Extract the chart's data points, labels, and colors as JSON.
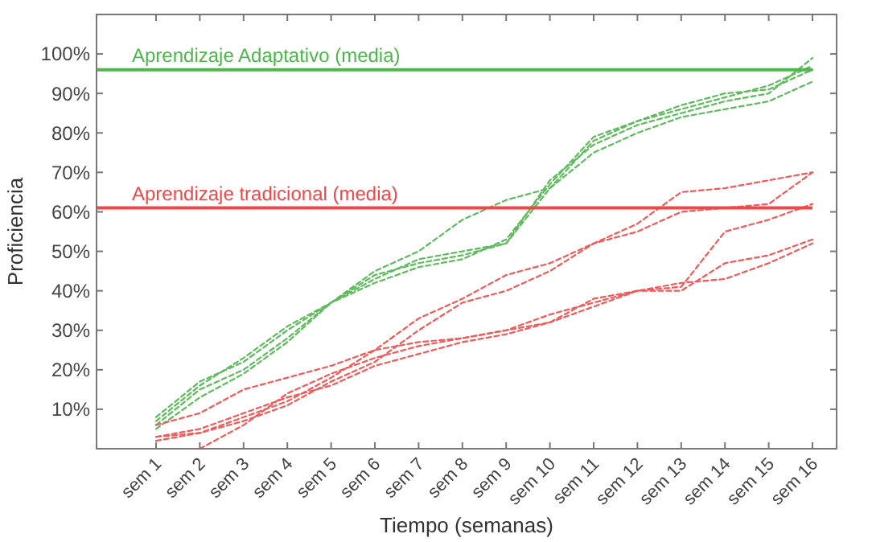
{
  "chart_data": {
    "type": "line",
    "xlabel": "Tiempo (semanas)",
    "ylabel": "Proficiencia",
    "categories": [
      "sem 1",
      "sem 2",
      "sem 3",
      "sem 4",
      "sem 5",
      "sem 6",
      "sem 7",
      "sem 8",
      "sem 9",
      "sem 10",
      "sem 11",
      "sem 12",
      "sem 13",
      "sem 14",
      "sem 15",
      "sem 16"
    ],
    "ylim": [
      0,
      110
    ],
    "yticks": [
      {
        "value": 10,
        "label": "10%"
      },
      {
        "value": 20,
        "label": "20%"
      },
      {
        "value": 30,
        "label": "30%"
      },
      {
        "value": 40,
        "label": "40%"
      },
      {
        "value": 50,
        "label": "50%"
      },
      {
        "value": 60,
        "label": "60%"
      },
      {
        "value": 70,
        "label": "70%"
      },
      {
        "value": 80,
        "label": "80%"
      },
      {
        "value": 90,
        "label": "90%"
      },
      {
        "value": 100,
        "label": "100%"
      }
    ],
    "line_style": "dashed",
    "marker": "none",
    "grid": false,
    "series": [
      {
        "color": "#5dbb5d",
        "values": [
          8,
          17,
          22,
          30,
          37,
          45,
          50,
          58,
          63,
          66,
          78,
          83,
          86,
          89,
          92,
          97
        ]
      },
      {
        "color": "#5dbb5d",
        "values": [
          6,
          15,
          20,
          28,
          37,
          43,
          48,
          50,
          52,
          68,
          77,
          82,
          85,
          88,
          90,
          99
        ]
      },
      {
        "color": "#5dbb5d",
        "values": [
          5,
          13,
          19,
          27,
          37,
          44,
          47,
          49,
          52,
          66,
          75,
          80,
          84,
          86,
          88,
          93
        ]
      },
      {
        "color": "#5dbb5d",
        "values": [
          7,
          16,
          23,
          31,
          37,
          42,
          46,
          48,
          53,
          67,
          79,
          83,
          87,
          90,
          91,
          96
        ]
      },
      {
        "color": "#f25a5a",
        "values": [
          3,
          4,
          8,
          12,
          18,
          25,
          33,
          38,
          44,
          47,
          52,
          57,
          65,
          66,
          68,
          70
        ]
      },
      {
        "color": "#f25a5a",
        "values": [
          2,
          4,
          7,
          11,
          17,
          22,
          30,
          37,
          40,
          45,
          52,
          55,
          60,
          61,
          62,
          70
        ]
      },
      {
        "color": "#f25a5a",
        "values": [
          6,
          9,
          15,
          18,
          21,
          25,
          27,
          28,
          30,
          32,
          38,
          40,
          41,
          55,
          58,
          62
        ]
      },
      {
        "color": "#f25a5a",
        "values": [
          3,
          5,
          9,
          13,
          16,
          21,
          24,
          27,
          29,
          32,
          36,
          40,
          42,
          43,
          47,
          52
        ]
      },
      {
        "color": "#f25a5a",
        "values": [
          null,
          0,
          6,
          14,
          19,
          23,
          26,
          28,
          30,
          34,
          37,
          40,
          40,
          47,
          49,
          53
        ]
      }
    ],
    "ref_lines": [
      {
        "axis": "y",
        "value": 96,
        "label": "Aprendizaje Adaptativo (media)",
        "color": "#4cb84c"
      },
      {
        "axis": "y",
        "value": 61,
        "label": "Aprendizaje tradicional (media)",
        "color": "#f04848"
      }
    ]
  }
}
